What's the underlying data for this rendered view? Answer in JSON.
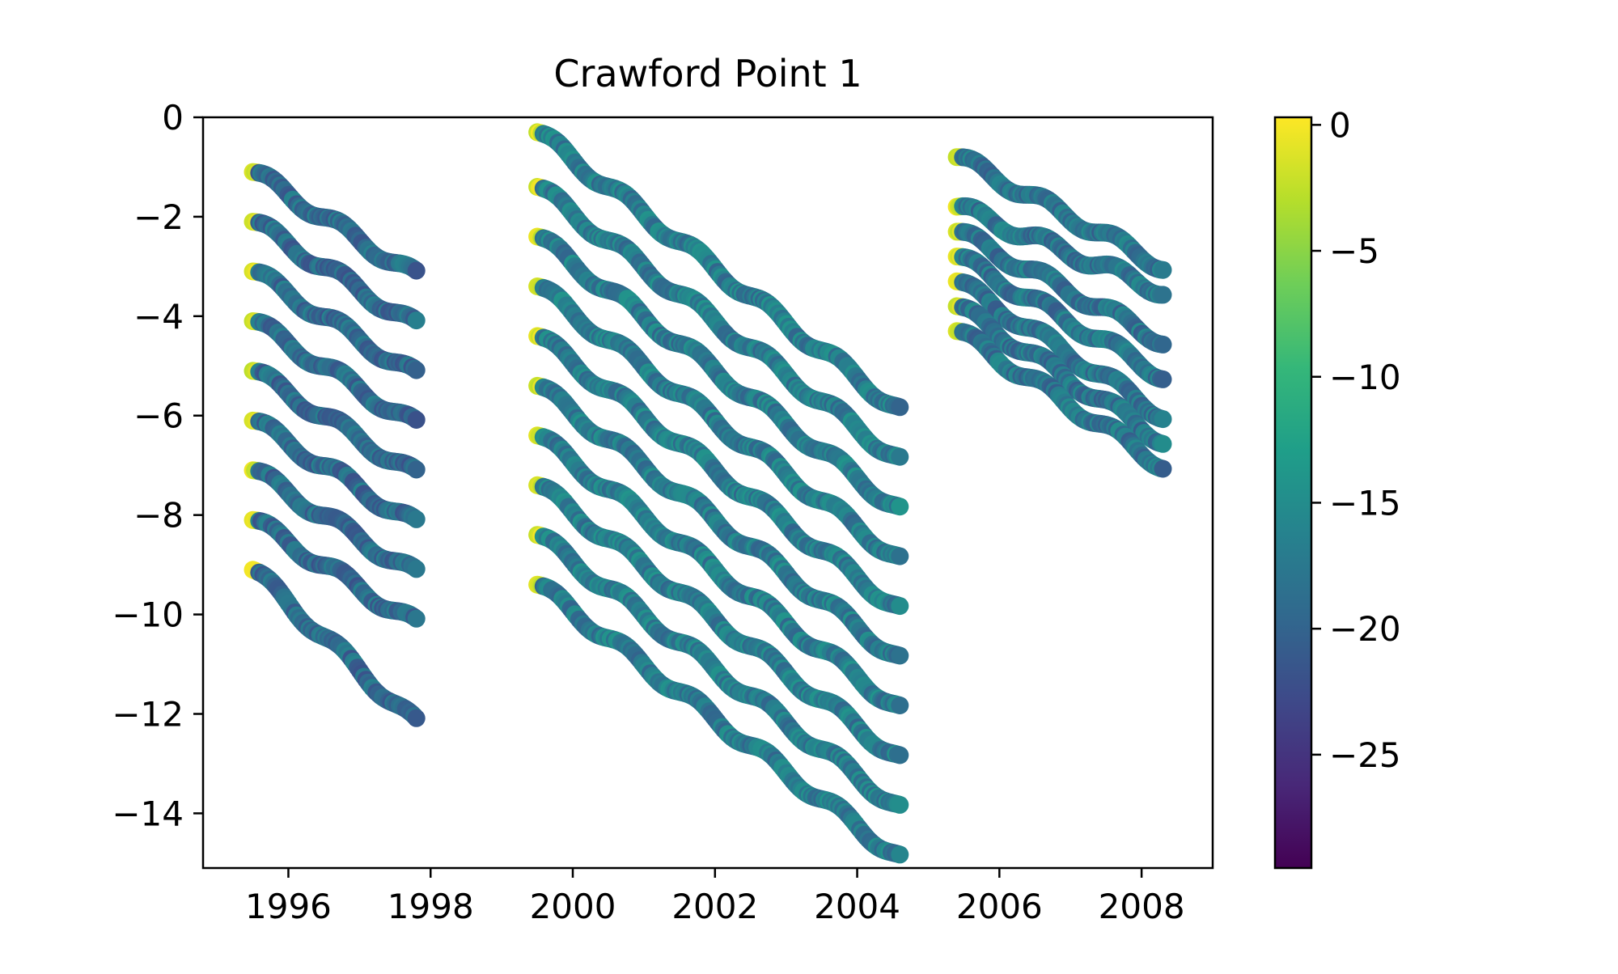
{
  "chart_data": {
    "type": "scatter",
    "title": "Crawford Point 1",
    "xlabel": "",
    "ylabel": "",
    "xlim": [
      1994.8,
      2009.0
    ],
    "ylim": [
      -15.1,
      0
    ],
    "x_ticks": [
      "1996",
      "1998",
      "2000",
      "2002",
      "2004",
      "2006",
      "2008"
    ],
    "y_ticks": [
      "0",
      "−2",
      "−4",
      "−6",
      "−8",
      "−10",
      "−12",
      "−14"
    ],
    "grid": false,
    "legend": "none",
    "colorbar": {
      "colormap": "viridis",
      "range": [
        -29.5,
        0.3
      ],
      "ticks": [
        "0",
        "−5",
        "−10",
        "−15",
        "−20",
        "−25"
      ],
      "colors": [
        "#440154",
        "#482878",
        "#3e4989",
        "#31688e",
        "#26828e",
        "#1f9e89",
        "#35b779",
        "#6ece58",
        "#b5de2b",
        "#fde725"
      ]
    },
    "series_approx": [
      {
        "period": [
          1995.5,
          1997.8
        ],
        "start_depths": [
          -1.1,
          -2.1,
          -3.1,
          -4.1,
          -5.1,
          -6.1,
          -7.1,
          -8.1,
          -9.1
        ],
        "end_depths": [
          -3.2,
          -4.2,
          -5.2,
          -6.2,
          -7.2,
          -8.2,
          -9.2,
          -10.2,
          -12.2
        ],
        "typical_value": -19
      },
      {
        "period": [
          1999.5,
          2004.6
        ],
        "start_depths": [
          -0.3,
          -1.4,
          -2.4,
          -3.4,
          -4.4,
          -5.4,
          -6.4,
          -7.4,
          -8.4,
          -9.4
        ],
        "end_depths": [
          -5.9,
          -6.9,
          -7.9,
          -8.9,
          -9.9,
          -10.9,
          -11.9,
          -12.9,
          -13.9,
          -14.9
        ],
        "typical_value": -17
      },
      {
        "period": [
          2005.4,
          2008.3
        ],
        "start_depths": [
          -0.8,
          -1.8,
          -2.3,
          -2.8,
          -3.3,
          -3.8,
          -4.3
        ],
        "end_depths": [
          -3.0,
          -3.5,
          -4.5,
          -5.2,
          -6.0,
          -6.5,
          -7.0
        ],
        "typical_value": -18
      }
    ]
  }
}
